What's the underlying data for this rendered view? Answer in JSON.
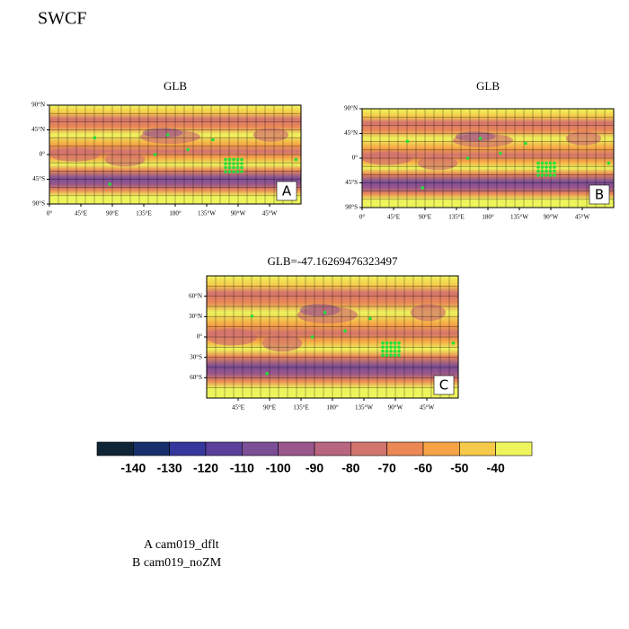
{
  "title": "SWCF",
  "panels": [
    {
      "title": "GLB",
      "label": "A",
      "lat_ticks": [
        "90°N",
        "45°N",
        "0°",
        "45°S",
        "90°S"
      ],
      "lon_ticks": [
        "0°",
        "45°E",
        "90°E",
        "135°E",
        "180°",
        "135°W",
        "90°W",
        "45°W"
      ]
    },
    {
      "title": "GLB",
      "label": "B",
      "lat_ticks": [
        "90°N",
        "45°N",
        "0°",
        "45°S",
        "90°S"
      ],
      "lon_ticks": [
        "0°",
        "45°E",
        "90°E",
        "135°E",
        "180°",
        "135°W",
        "90°W",
        "45°W"
      ]
    },
    {
      "title": "GLB=-47.16269476323497",
      "label": "C",
      "lat_ticks": [
        "60°N",
        "30°N",
        "0°",
        "30°S",
        "60°S"
      ],
      "lon_ticks": [
        "45°E",
        "90°E",
        "135°E",
        "180°",
        "135°W",
        "90°W",
        "45°W"
      ]
    }
  ],
  "colorbar": {
    "levels": [
      -140,
      -130,
      -120,
      -110,
      -100,
      -90,
      -80,
      -70,
      -60,
      -50,
      -40
    ],
    "colors": [
      "#0f2535",
      "#17306b",
      "#36379c",
      "#5b3f9b",
      "#7b4e96",
      "#9a578c",
      "#b8657f",
      "#d3746e",
      "#eb8856",
      "#f6a345",
      "#f7c94a",
      "#eef45c"
    ]
  },
  "legend": [
    "A  cam019_dflt",
    "B  cam019_noZM"
  ]
}
